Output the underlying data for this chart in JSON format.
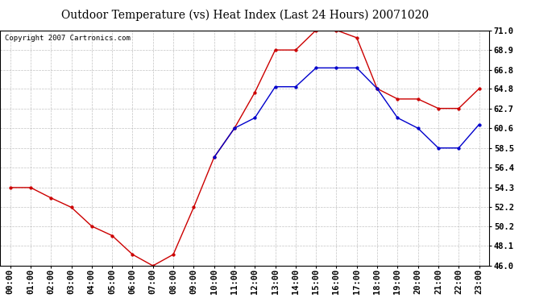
{
  "title": "Outdoor Temperature (vs) Heat Index (Last 24 Hours) 20071020",
  "copyright_text": "Copyright 2007 Cartronics.com",
  "hours": [
    "00:00",
    "01:00",
    "02:00",
    "03:00",
    "04:00",
    "05:00",
    "06:00",
    "07:00",
    "08:00",
    "09:00",
    "10:00",
    "11:00",
    "12:00",
    "13:00",
    "14:00",
    "15:00",
    "16:00",
    "17:00",
    "18:00",
    "19:00",
    "20:00",
    "21:00",
    "22:00",
    "23:00"
  ],
  "temp": [
    54.3,
    54.3,
    53.2,
    52.2,
    50.2,
    49.2,
    47.2,
    46.0,
    47.2,
    52.2,
    57.5,
    60.6,
    64.4,
    68.9,
    68.9,
    71.0,
    71.0,
    70.2,
    64.8,
    63.7,
    63.7,
    62.7,
    62.7,
    64.8
  ],
  "heat_index": [
    null,
    null,
    null,
    null,
    null,
    null,
    null,
    null,
    null,
    null,
    57.5,
    60.6,
    61.7,
    65.0,
    65.0,
    67.0,
    67.0,
    67.0,
    64.8,
    61.7,
    60.6,
    58.5,
    58.5,
    61.0
  ],
  "temp_color": "#cc0000",
  "heat_color": "#0000cc",
  "ylim_min": 46.0,
  "ylim_max": 71.0,
  "yticks": [
    46.0,
    48.1,
    50.2,
    52.2,
    54.3,
    56.4,
    58.5,
    60.6,
    62.7,
    64.8,
    66.8,
    68.9,
    71.0
  ],
  "background_color": "#ffffff",
  "plot_bg_color": "#ffffff",
  "grid_color": "#aaaaaa",
  "title_fontsize": 10,
  "copyright_fontsize": 6.5,
  "tick_fontsize": 7.5,
  "marker_size": 2.5,
  "line_width": 1.0
}
